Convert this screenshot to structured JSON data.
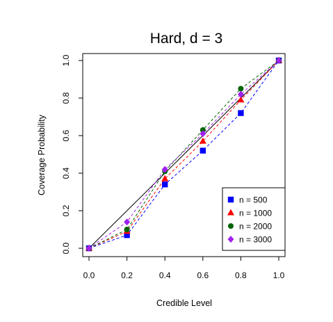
{
  "chart_data": {
    "type": "line",
    "title": "Hard, d = 3",
    "xlabel": "Credible Level",
    "ylabel": "Coverage Probability",
    "xlim": [
      0.0,
      1.0
    ],
    "ylim": [
      0.0,
      1.0
    ],
    "x_ticks": [
      "0.0",
      "0.2",
      "0.4",
      "0.6",
      "0.8",
      "1.0"
    ],
    "y_ticks": [
      "0.0",
      "0.2",
      "0.4",
      "0.6",
      "0.8",
      "1.0"
    ],
    "x": [
      0.0,
      0.2,
      0.4,
      0.6,
      0.8,
      1.0
    ],
    "reference_line": {
      "from": [
        0,
        0
      ],
      "to": [
        1,
        1
      ],
      "color": "#000000"
    },
    "grid": false,
    "legend_position": "bottom-right",
    "series": [
      {
        "name": "n = 500",
        "marker": "square",
        "color": "#0000ff",
        "values": [
          0.0,
          0.07,
          0.34,
          0.52,
          0.72,
          1.0
        ]
      },
      {
        "name": "n = 1000",
        "marker": "triangle",
        "color": "#ff0000",
        "values": [
          0.0,
          0.09,
          0.37,
          0.57,
          0.79,
          1.0
        ]
      },
      {
        "name": "n = 2000",
        "marker": "circle",
        "color": "#006400",
        "values": [
          0.0,
          0.1,
          0.41,
          0.63,
          0.85,
          1.0
        ]
      },
      {
        "name": "n = 3000",
        "marker": "diamond",
        "color": "#a020f0",
        "values": [
          0.0,
          0.14,
          0.42,
          0.61,
          0.82,
          1.0
        ]
      }
    ]
  }
}
